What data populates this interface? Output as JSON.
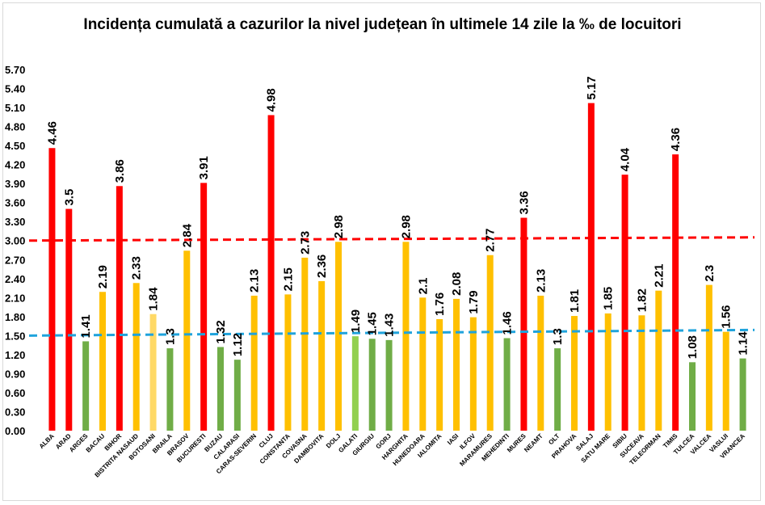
{
  "chart_data": {
    "type": "bar",
    "title": "Incidența cumulată a cazurilor la nivel județean în ultimele 14 zile la ‰ de locuitori",
    "xlabel": "",
    "ylabel": "",
    "ylim": [
      0,
      5.7
    ],
    "yticks": [
      "0.00",
      "0.30",
      "0.60",
      "0.90",
      "1.20",
      "1.50",
      "1.80",
      "2.10",
      "2.40",
      "2.70",
      "3.00",
      "3.30",
      "3.60",
      "3.90",
      "4.20",
      "4.50",
      "4.80",
      "5.10",
      "5.40",
      "5.70"
    ],
    "grid": false,
    "legend": "none",
    "categories": [
      "ALBA",
      "ARAD",
      "ARGES",
      "BACAU",
      "BIHOR",
      "BISTRITA NASAUD",
      "BOTOSANI",
      "BRAILA",
      "BRASOV",
      "BUCURESTI",
      "BUZAU",
      "CALARASI",
      "CARAS-SEVERIN",
      "CLUJ",
      "CONSTANTA",
      "COVASNA",
      "DAMBOVITA",
      "DOLJ",
      "GALATI",
      "GIURGIU",
      "GORJ",
      "HARGHITA",
      "HUNEDOARA",
      "IALOMITA",
      "IASI",
      "ILFOV",
      "MARAMURES",
      "MEHEDINTI",
      "MURES",
      "NEAMT",
      "OLT",
      "PRAHOVA",
      "SALAJ",
      "SATU MARE",
      "SIBIU",
      "SUCEAVA",
      "TELEORMAN",
      "TIMIS",
      "TULCEA",
      "VALCEA",
      "VASLUI",
      "VRANCEA"
    ],
    "values": [
      4.46,
      3.5,
      1.41,
      2.19,
      3.86,
      2.33,
      1.84,
      1.3,
      2.84,
      3.91,
      1.32,
      1.12,
      2.13,
      4.98,
      2.15,
      2.73,
      2.36,
      2.98,
      1.49,
      1.45,
      1.43,
      2.98,
      2.1,
      1.76,
      2.08,
      1.79,
      2.77,
      1.46,
      3.36,
      2.13,
      1.3,
      1.81,
      5.17,
      1.85,
      4.04,
      1.82,
      2.21,
      4.36,
      1.08,
      2.3,
      1.56,
      1.14
    ],
    "value_labels": [
      "4.46",
      "3.5",
      "1.41",
      "2.19",
      "3.86",
      "2.33",
      "1.84",
      "1.3",
      "2.84",
      "3.91",
      "1.32",
      "1.12",
      "2.13",
      "4.98",
      "2.15",
      "2.73",
      "2.36",
      "2.98",
      "1.49",
      "1.45",
      "1.43",
      "2.98",
      "2.1",
      "1.76",
      "2.08",
      "1.79",
      "2.77",
      "1.46",
      "3.36",
      "2.13",
      "1.3",
      "1.81",
      "5.17",
      "1.85",
      "4.04",
      "1.82",
      "2.21",
      "4.36",
      "1.08",
      "2.3",
      "1.56",
      "1.14"
    ],
    "bar_colors": [
      "#ff0000",
      "#ff0000",
      "#70ad47",
      "#ffc000",
      "#ff0000",
      "#ffc000",
      "#ffd966",
      "#70ad47",
      "#ffc000",
      "#ff0000",
      "#70ad47",
      "#70ad47",
      "#ffc000",
      "#ff0000",
      "#ffc000",
      "#ffc000",
      "#ffc000",
      "#ffc000",
      "#92d050",
      "#70ad47",
      "#70ad47",
      "#ffc000",
      "#ffc000",
      "#ffc000",
      "#ffc000",
      "#ffc000",
      "#ffc000",
      "#70ad47",
      "#ff0000",
      "#ffc000",
      "#70ad47",
      "#ffc000",
      "#ff0000",
      "#ffc000",
      "#ff0000",
      "#ffc000",
      "#ffc000",
      "#ff0000",
      "#70ad47",
      "#ffc000",
      "#ffc000",
      "#70ad47"
    ],
    "reference_lines": [
      {
        "value": 3.0,
        "color": "#ff0000",
        "style": "dashed"
      },
      {
        "value": 1.5,
        "color": "#1fa3dc",
        "style": "dashed"
      }
    ]
  }
}
